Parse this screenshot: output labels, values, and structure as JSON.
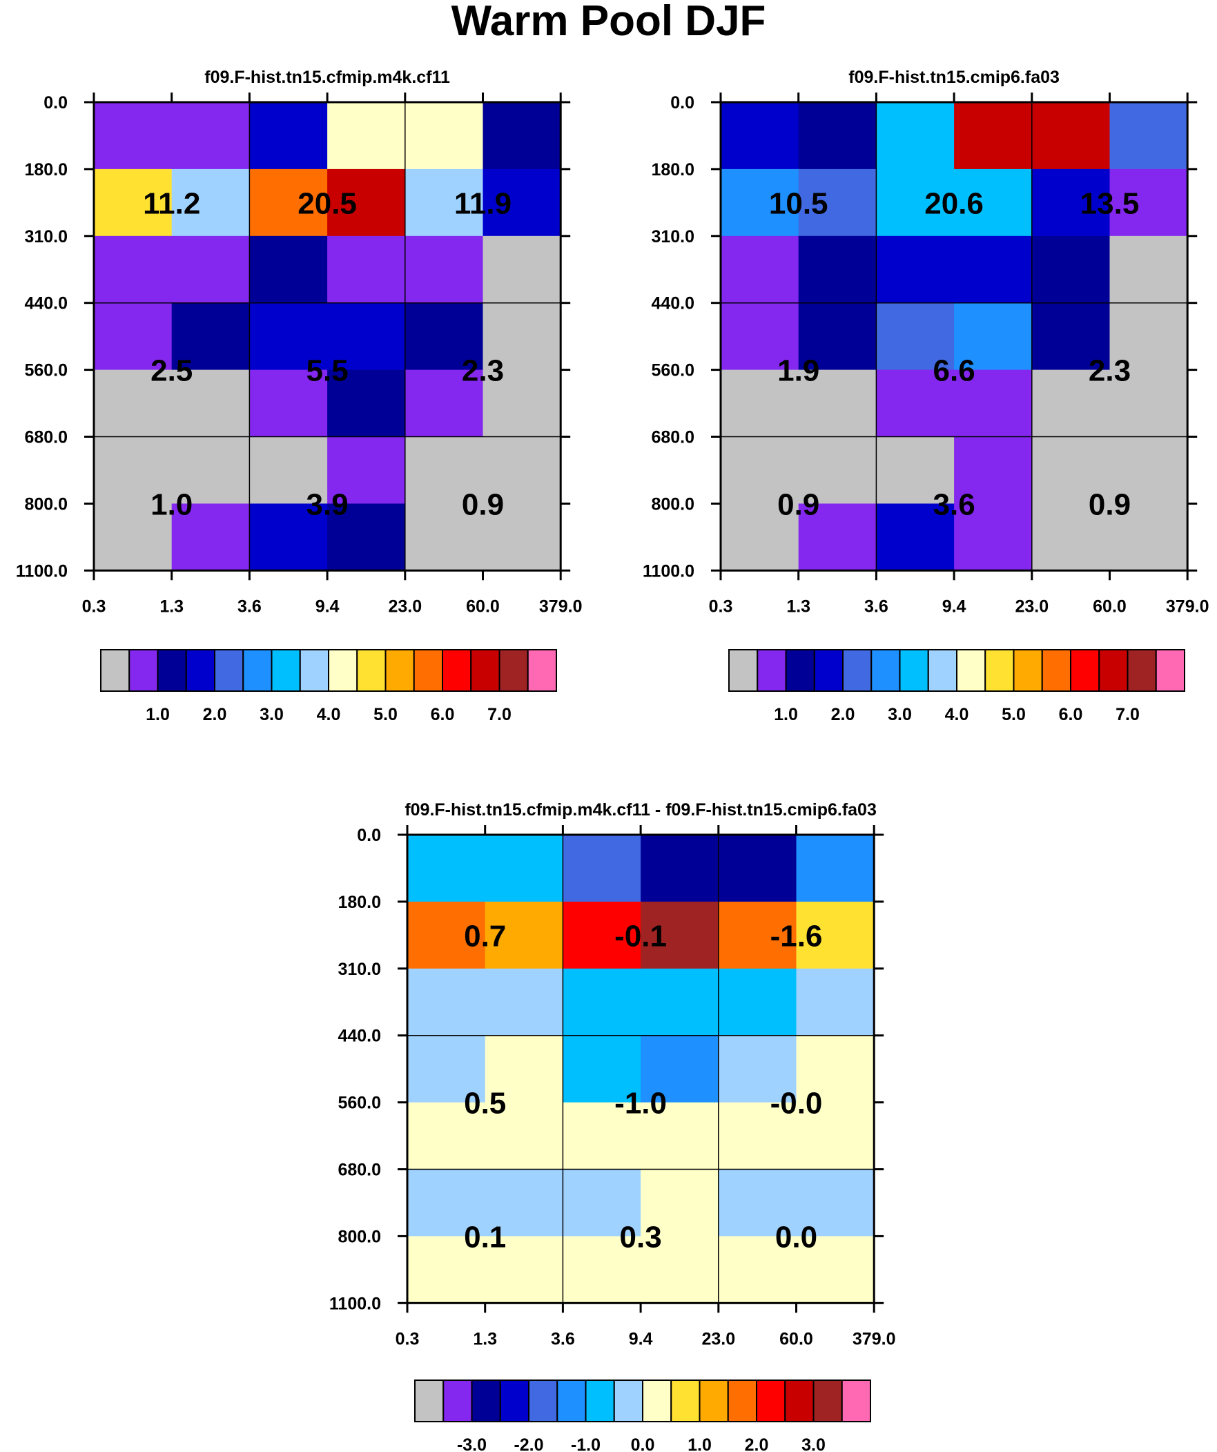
{
  "page": {
    "title": "Warm Pool DJF"
  },
  "chart_data": [
    {
      "type": "heatmap",
      "title": "f09.F-hist.tn15.cfmip.m4k.cf11",
      "x_ticks": [
        "0.3",
        "1.3",
        "3.6",
        "9.4",
        "23.0",
        "60.0",
        "379.0"
      ],
      "y_ticks": [
        "0.0",
        "180.0",
        "310.0",
        "440.0",
        "560.0",
        "680.0",
        "800.0",
        "1100.0"
      ],
      "cells": [
        [
          1,
          1,
          3,
          8,
          8,
          2
        ],
        [
          9,
          7,
          11,
          13,
          7,
          3
        ],
        [
          1,
          1,
          2,
          1,
          1,
          0
        ],
        [
          1,
          2,
          3,
          3,
          2,
          0
        ],
        [
          0,
          0,
          1,
          2,
          1,
          0
        ],
        [
          0,
          0,
          0,
          1,
          0,
          0
        ],
        [
          0,
          1,
          3,
          2,
          0,
          0
        ]
      ],
      "block_labels": [
        [
          "11.2",
          "20.5",
          "11.9"
        ],
        [
          "2.5",
          "5.5",
          "2.3"
        ],
        [
          "1.0",
          "3.9",
          "0.9"
        ]
      ],
      "colorbar": {
        "colors": [
          "#c3c3c3",
          "#8428ef",
          "#000096",
          "#0000cd",
          "#4169e1",
          "#1e90ff",
          "#00bfff",
          "#a0d2ff",
          "#ffffc8",
          "#ffe132",
          "#ffaa00",
          "#ff6e00",
          "#ff0000",
          "#c80000",
          "#a02323",
          "#ff69b4"
        ],
        "labels": [
          "1.0",
          "2.0",
          "3.0",
          "4.0",
          "5.0",
          "6.0",
          "7.0"
        ],
        "label_positions": [
          2,
          4,
          6,
          8,
          10,
          12,
          14
        ]
      }
    },
    {
      "type": "heatmap",
      "title": "f09.F-hist.tn15.cmip6.fa03",
      "x_ticks": [
        "0.3",
        "1.3",
        "3.6",
        "9.4",
        "23.0",
        "60.0",
        "379.0"
      ],
      "y_ticks": [
        "0.0",
        "180.0",
        "310.0",
        "440.0",
        "560.0",
        "680.0",
        "800.0",
        "1100.0"
      ],
      "cells": [
        [
          3,
          2,
          6,
          13,
          13,
          4
        ],
        [
          5,
          4,
          6,
          6,
          3,
          1
        ],
        [
          1,
          2,
          3,
          3,
          2,
          0
        ],
        [
          1,
          2,
          4,
          5,
          2,
          0
        ],
        [
          0,
          0,
          1,
          1,
          0,
          0
        ],
        [
          0,
          0,
          0,
          1,
          0,
          0
        ],
        [
          0,
          1,
          3,
          1,
          0,
          0
        ]
      ],
      "block_labels": [
        [
          "10.5",
          "20.6",
          "13.5"
        ],
        [
          "1.9",
          "6.6",
          "2.3"
        ],
        [
          "0.9",
          "3.6",
          "0.9"
        ]
      ],
      "colorbar": {
        "colors": [
          "#c3c3c3",
          "#8428ef",
          "#000096",
          "#0000cd",
          "#4169e1",
          "#1e90ff",
          "#00bfff",
          "#a0d2ff",
          "#ffffc8",
          "#ffe132",
          "#ffaa00",
          "#ff6e00",
          "#ff0000",
          "#c80000",
          "#a02323",
          "#ff69b4"
        ],
        "labels": [
          "1.0",
          "2.0",
          "3.0",
          "4.0",
          "5.0",
          "6.0",
          "7.0"
        ],
        "label_positions": [
          2,
          4,
          6,
          8,
          10,
          12,
          14
        ]
      }
    },
    {
      "type": "heatmap",
      "title": "f09.F-hist.tn15.cfmip.m4k.cf11 - f09.F-hist.tn15.cmip6.fa03",
      "x_ticks": [
        "0.3",
        "1.3",
        "3.6",
        "9.4",
        "23.0",
        "60.0",
        "379.0"
      ],
      "y_ticks": [
        "0.0",
        "180.0",
        "310.0",
        "440.0",
        "560.0",
        "680.0",
        "800.0",
        "1100.0"
      ],
      "cells": [
        [
          6,
          6,
          4,
          2,
          2,
          5
        ],
        [
          11,
          10,
          12,
          14,
          11,
          9
        ],
        [
          7,
          7,
          6,
          6,
          6,
          7
        ],
        [
          7,
          8,
          6,
          5,
          7,
          8
        ],
        [
          8,
          8,
          8,
          8,
          8,
          8
        ],
        [
          7,
          7,
          7,
          8,
          7,
          7
        ],
        [
          8,
          8,
          8,
          8,
          8,
          8
        ]
      ],
      "block_labels": [
        [
          "0.7",
          "-0.1",
          "-1.6"
        ],
        [
          "0.5",
          "-1.0",
          "-0.0"
        ],
        [
          "0.1",
          "0.3",
          "0.0"
        ]
      ],
      "colorbar": {
        "colors": [
          "#c3c3c3",
          "#8428ef",
          "#000096",
          "#0000cd",
          "#4169e1",
          "#1e90ff",
          "#00bfff",
          "#a0d2ff",
          "#ffffc8",
          "#ffe132",
          "#ffaa00",
          "#ff6e00",
          "#ff0000",
          "#c80000",
          "#a02323",
          "#ff69b4"
        ],
        "labels": [
          "-3.0",
          "-2.0",
          "-1.0",
          "0.0",
          "1.0",
          "2.0",
          "3.0"
        ],
        "label_positions": [
          2,
          4,
          6,
          8,
          10,
          12,
          14
        ]
      }
    }
  ]
}
